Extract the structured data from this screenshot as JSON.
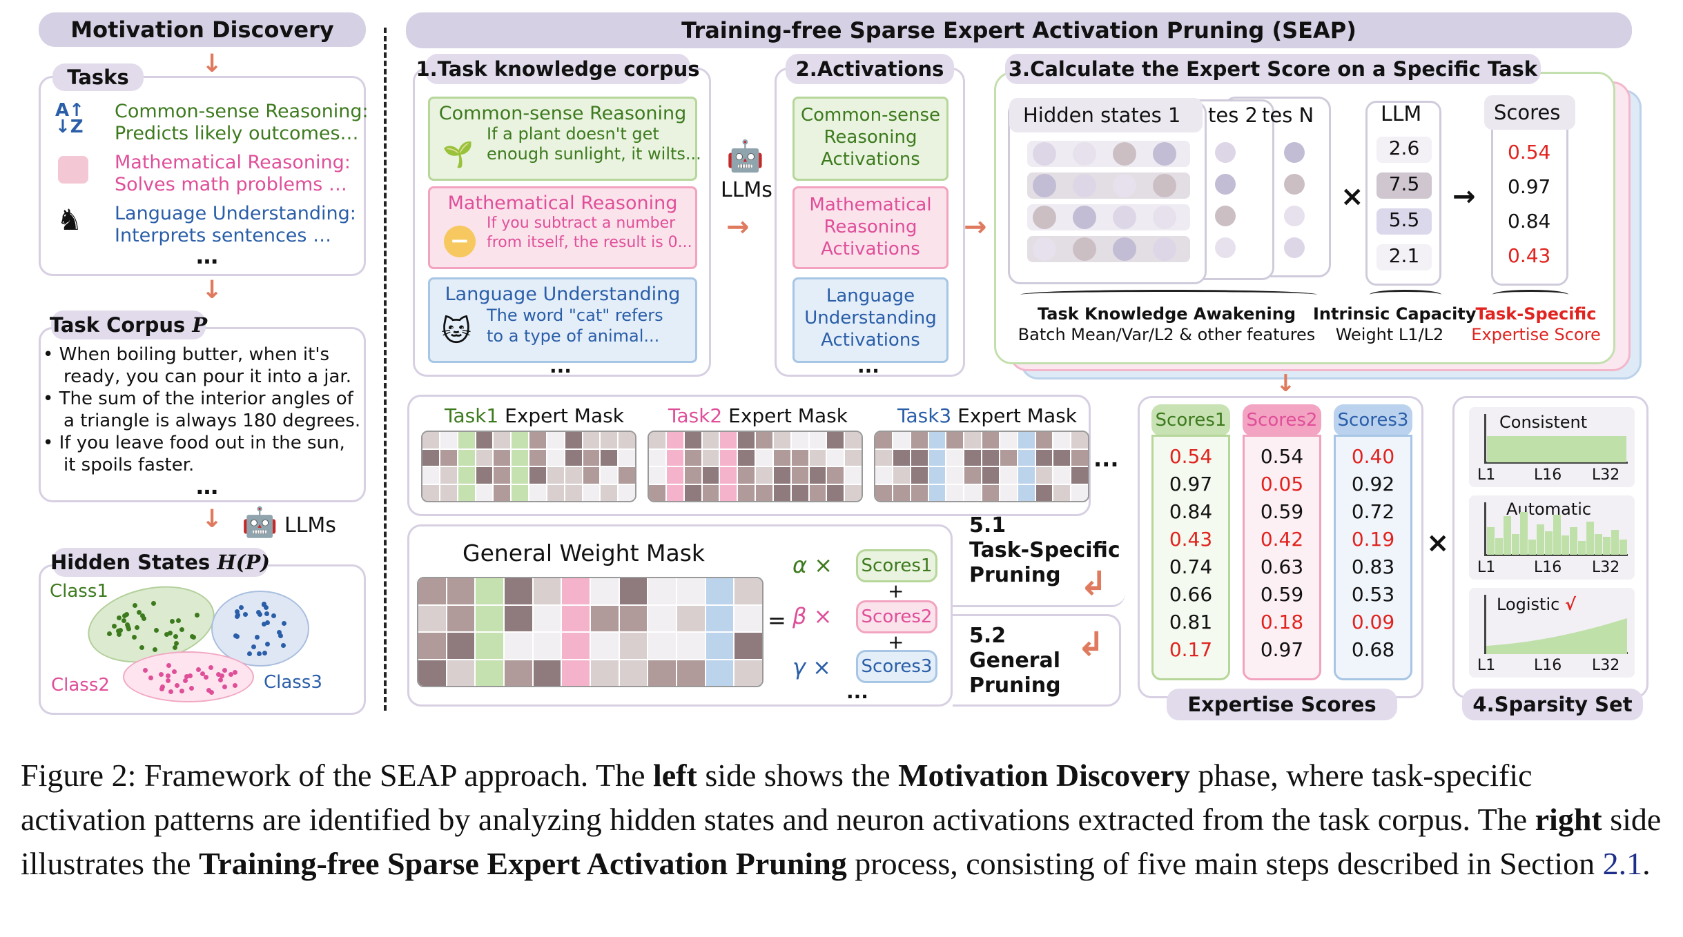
{
  "left": {
    "title": "Motivation Discovery",
    "tasks_label": "Tasks",
    "tasks": [
      {
        "head": "Common-sense Reasoning:",
        "body": "Predicts likely outcomes…",
        "icon": "sort-az-icon",
        "color": "#3d7a1e"
      },
      {
        "head": "Mathematical Reasoning:",
        "body": "Solves math problems …",
        "icon": "dice-icon",
        "color": "#df4f99"
      },
      {
        "head": "Language Understanding:",
        "body": "Interprets sentences …",
        "icon": "chess-icon",
        "color": "#2a5ea8"
      }
    ],
    "ellipsis": "…",
    "corpus_label": "Task Corpus",
    "corpus_var": "P",
    "corpus_items": [
      "When boiling butter, when it's",
      "ready, you can pour it into a jar.",
      "The sum of the interior angles of",
      "a triangle is always 180 degrees.",
      "If you leave food out in the sun,",
      "it spoils faster."
    ],
    "llms": "LLMs",
    "hidden_label": "Hidden States",
    "hidden_var": "H(P)",
    "classes": [
      "Class1",
      "Class2",
      "Class3"
    ]
  },
  "right": {
    "title": "Training-free Sparse Expert Activation Pruning (SEAP)",
    "step1": {
      "label": "1.Task knowledge corpus",
      "items": [
        {
          "title": "Common-sense Reasoning",
          "text": [
            "If a plant doesn't get",
            "enough sunlight, it wilts..."
          ]
        },
        {
          "title": "Mathematical Reasoning",
          "text": [
            "If you subtract a number",
            "from itself, the result is 0..."
          ]
        },
        {
          "title": "Language Understanding",
          "text": [
            "The word \"cat\" refers",
            "to a type of animal..."
          ]
        }
      ],
      "ellipsis": "..."
    },
    "llms": "LLMs",
    "step2": {
      "label": "2.Activations",
      "items": [
        [
          "Common-sense",
          "Reasoning",
          "Activations"
        ],
        [
          "Mathematical",
          "Reasoning",
          "Activations"
        ],
        [
          "Language",
          "Understanding",
          "Activations"
        ]
      ],
      "ellipsis": "..."
    },
    "step3": {
      "label": "3.Calculate the Expert Score on a Specific Task",
      "hidden": [
        "Hidden states 1",
        "tes 2",
        "tes N"
      ],
      "llm_label": "LLM",
      "llm_values": [
        "2.6",
        "7.5",
        "5.5",
        "2.1"
      ],
      "times": "×",
      "arrow": "→",
      "scores_label": "Scores",
      "scores": [
        "0.54",
        "0.97",
        "0.84",
        "0.43"
      ],
      "cap1": [
        "Task Knowledge Awakening",
        "Batch Mean/Var/L2 & other features"
      ],
      "cap2": [
        "Intrinsic Capacity",
        "Weight L1/L2"
      ],
      "cap3": [
        "Task-Specific",
        "Expertise Score"
      ]
    },
    "masks": [
      {
        "label": "Task1",
        "suffix": " Expert Mask"
      },
      {
        "label": "Task2",
        "suffix": " Expert Mask"
      },
      {
        "label": "Task3",
        "suffix": " Expert Mask"
      }
    ],
    "mask_ellipsis": "...",
    "general": {
      "label": "General Weight Mask",
      "eq": "=",
      "alpha": "α ×",
      "beta": "β ×",
      "gamma": "γ ×",
      "plus": "+",
      "s1": "Scores1",
      "s2": "Scores2",
      "s3": "Scores3",
      "ellipsis": "..."
    },
    "step51": [
      "5.1",
      "Task-Specific",
      "Pruning"
    ],
    "step52": [
      "5.2",
      "General",
      "Pruning"
    ],
    "expertise": {
      "headers": [
        "Scores1",
        "Scores2",
        "Scores3"
      ],
      "col1": [
        "0.54",
        "0.97",
        "0.84",
        "0.43",
        "0.74",
        "0.66",
        "0.81",
        "0.17"
      ],
      "col2": [
        "0.54",
        "0.05",
        "0.59",
        "0.42",
        "0.63",
        "0.59",
        "0.18",
        "0.97"
      ],
      "col3": [
        "0.40",
        "0.92",
        "0.72",
        "0.19",
        "0.83",
        "0.53",
        "0.09",
        "0.68"
      ],
      "label": "Expertise Scores"
    },
    "times2": "×",
    "sparsity": {
      "label": "4.Sparsity Set",
      "charts": [
        {
          "title": "Consistent"
        },
        {
          "title": "Automatic"
        },
        {
          "title": "Logistic",
          "mark": "√"
        }
      ],
      "ticks": [
        "L1",
        "L16",
        "L32"
      ]
    }
  },
  "caption": {
    "prefix": "Figure 2: Framework of the SEAP approach. The ",
    "b1": "left",
    "m1": " side shows the ",
    "b2": "Motivation Discovery",
    "m2": " phase, where task-specific activation patterns are identified by analyzing hidden states and neuron activations extracted from the task corpus. The ",
    "b3": "right",
    "m3": " side illustrates the ",
    "b4": "Training-free Sparse Expert Activation Pruning",
    "m4": " process, consisting of five main steps described in Section ",
    "link": "2.1",
    "end": "."
  },
  "colors": {
    "green": "#3d7a1e",
    "pink": "#df4f99",
    "blue": "#2a5ea8",
    "red": "#e0231f",
    "panel": "#d6d0e4"
  }
}
